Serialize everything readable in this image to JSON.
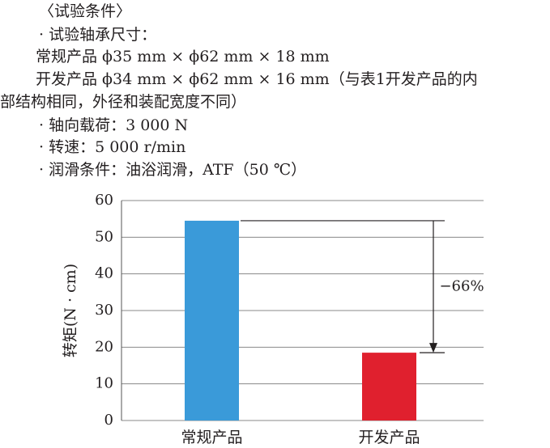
{
  "conditions": [
    "〈试验条件〉",
    "· 试验轴承尺寸：",
    "常规产品 ϕ35 mm × ϕ62 mm × 18 mm",
    "开发产品 ϕ34 mm × ϕ62 mm × 16 mm（与表1开发产品的内",
    "部结构相同，外径和装配宽度不同）",
    "· 轴向载荷：3 000 N",
    "· 转速：5 000 r/min",
    "· 润滑条件：油浴润滑，ATF（50 ℃）"
  ],
  "chart_data": {
    "type": "bar",
    "y_label": "转矩(N · cm)",
    "categories": [
      "常规产品",
      "开发产品"
    ],
    "values": [
      54.5,
      18.5
    ],
    "colors": [
      "#3a9ad9",
      "#e0202e"
    ],
    "ylim": [
      0,
      60
    ],
    "yticks": [
      0,
      10,
      20,
      30,
      40,
      50,
      60
    ],
    "grid": true,
    "annotation": "−66%"
  }
}
